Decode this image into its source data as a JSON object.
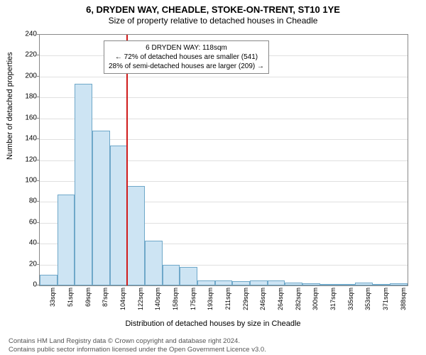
{
  "title": "6, DRYDEN WAY, CHEADLE, STOKE-ON-TRENT, ST10 1YE",
  "subtitle": "Size of property relative to detached houses in Cheadle",
  "y_label": "Number of detached properties",
  "x_label": "Distribution of detached houses by size in Cheadle",
  "chart": {
    "type": "histogram",
    "ylim": [
      0,
      240
    ],
    "ytick_step": 20,
    "bar_fill": "#cde4f3",
    "bar_border": "#6fa8c9",
    "grid_color": "#e0e0e0",
    "background_color": "#ffffff",
    "marker_color": "#d01c1c",
    "marker_x_index": 5,
    "categories": [
      "33sqm",
      "51sqm",
      "69sqm",
      "87sqm",
      "104sqm",
      "122sqm",
      "140sqm",
      "158sqm",
      "175sqm",
      "193sqm",
      "211sqm",
      "229sqm",
      "246sqm",
      "264sqm",
      "282sqm",
      "300sqm",
      "317sqm",
      "335sqm",
      "353sqm",
      "371sqm",
      "388sqm"
    ],
    "values": [
      10,
      87,
      193,
      148,
      134,
      95,
      43,
      20,
      18,
      5,
      5,
      4,
      5,
      5,
      3,
      2,
      0,
      0,
      3,
      0,
      2
    ]
  },
  "annotation": {
    "line1": "6 DRYDEN WAY: 118sqm",
    "line2": "← 72% of detached houses are smaller (541)",
    "line3": "28% of semi-detached houses are larger (209) →"
  },
  "footer": {
    "line1": "Contains HM Land Registry data © Crown copyright and database right 2024.",
    "line2": "Contains public sector information licensed under the Open Government Licence v3.0."
  }
}
